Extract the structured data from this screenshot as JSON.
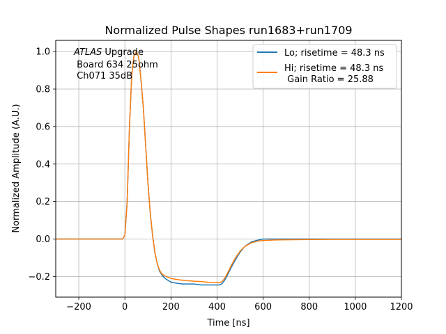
{
  "chart_data": {
    "type": "line",
    "title": "Normalized Pulse Shapes run1683+run1709",
    "xlabel": "Time [ns]",
    "ylabel": "Normalized Amplitude (A.U.)",
    "xlim": [
      -300,
      1200
    ],
    "ylim": [
      -0.31,
      1.06
    ],
    "xticks": [
      -200,
      0,
      200,
      400,
      600,
      800,
      1000,
      1200
    ],
    "xtick_labels": [
      "−200",
      "0",
      "200",
      "400",
      "600",
      "800",
      "1000",
      "1200"
    ],
    "yticks": [
      -0.2,
      0.0,
      0.2,
      0.4,
      0.6,
      0.8,
      1.0
    ],
    "ytick_labels": [
      "−0.2",
      "0.0",
      "0.2",
      "0.4",
      "0.6",
      "0.8",
      "1.0"
    ],
    "grid": true,
    "legend_position": "top-right",
    "annotation": {
      "line1_italic": "ATLAS",
      "line1_rest": " Upgrade",
      "line2": " Board 634 25ohm",
      "line3": " Ch071 35dB"
    },
    "series": [
      {
        "name": "Lo; risetime = 48.3 ns",
        "color": "#1f77b4",
        "x": [
          -300,
          -200,
          -100,
          -10,
          0,
          10,
          20,
          30,
          40,
          50,
          60,
          70,
          80,
          90,
          100,
          110,
          120,
          130,
          140,
          150,
          160,
          170,
          180,
          200,
          220,
          250,
          280,
          300,
          330,
          360,
          390,
          410,
          420,
          430,
          440,
          450,
          460,
          480,
          500,
          520,
          550,
          580,
          600,
          650,
          700,
          800,
          900,
          1000,
          1100,
          1200
        ],
        "y": [
          0.0,
          0.0,
          0.0,
          0.0,
          0.02,
          0.2,
          0.6,
          0.88,
          0.98,
          1.0,
          0.97,
          0.85,
          0.7,
          0.5,
          0.3,
          0.14,
          0.02,
          -0.07,
          -0.13,
          -0.17,
          -0.19,
          -0.205,
          -0.215,
          -0.23,
          -0.235,
          -0.24,
          -0.24,
          -0.24,
          -0.245,
          -0.245,
          -0.245,
          -0.245,
          -0.24,
          -0.225,
          -0.205,
          -0.18,
          -0.155,
          -0.11,
          -0.07,
          -0.04,
          -0.015,
          -0.005,
          0.0,
          0.0,
          0.0,
          0.0,
          0.0,
          0.0,
          0.0,
          0.0
        ]
      },
      {
        "name": "Hi; risetime = 48.3 ns\n Gain Ratio = 25.88",
        "color": "#ff7f0e",
        "x": [
          -300,
          -200,
          -100,
          -10,
          0,
          10,
          20,
          30,
          40,
          50,
          60,
          70,
          80,
          90,
          100,
          110,
          120,
          130,
          140,
          150,
          160,
          170,
          180,
          200,
          220,
          250,
          280,
          300,
          330,
          360,
          390,
          410,
          420,
          430,
          440,
          450,
          460,
          480,
          500,
          520,
          550,
          580,
          600,
          650,
          700,
          800,
          900,
          1000,
          1100,
          1200
        ],
        "y": [
          0.0,
          0.0,
          0.0,
          0.0,
          0.02,
          0.2,
          0.6,
          0.88,
          0.98,
          1.0,
          0.97,
          0.85,
          0.7,
          0.5,
          0.3,
          0.14,
          0.02,
          -0.07,
          -0.13,
          -0.165,
          -0.185,
          -0.195,
          -0.2,
          -0.21,
          -0.215,
          -0.22,
          -0.223,
          -0.225,
          -0.227,
          -0.23,
          -0.232,
          -0.233,
          -0.228,
          -0.215,
          -0.195,
          -0.17,
          -0.145,
          -0.1,
          -0.065,
          -0.04,
          -0.02,
          -0.01,
          -0.008,
          -0.005,
          -0.004,
          -0.003,
          -0.002,
          -0.002,
          -0.002,
          -0.002
        ]
      }
    ]
  }
}
